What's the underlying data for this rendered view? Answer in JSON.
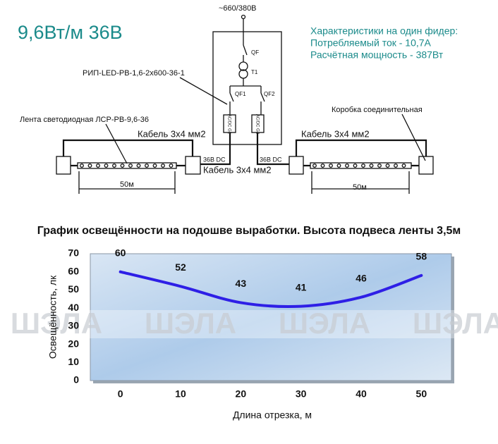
{
  "diagram": {
    "heading": "9,6Вт/м 36В",
    "supply": "~660/380В",
    "specs": [
      "Характеристики на один фидер:",
      "Потребляемый ток - 10,7А",
      "Расчётная мощность - 387Вт"
    ],
    "qf": "QF",
    "t1": "T1",
    "qf1": "QF1",
    "qf2": "QF2",
    "psu1": "AC/DC G1",
    "psu2": "AC/DC G2",
    "rip": "РИП-LED-PB-1,6-2x600-36-1",
    "strip": "Лента светодиодная ЛСР-PB-9,6-36",
    "box": "Коробка соединительная",
    "cables": [
      "Кабель 3х4 мм2",
      "Кабель 3х4 мм2",
      "Кабель 3х4 мм2"
    ],
    "dc": [
      "36В DC",
      "36В DC"
    ],
    "lengths": [
      "50м",
      "50м"
    ],
    "watermark": "ШЭЛА"
  },
  "chart_data": {
    "type": "line",
    "title": "График освещённости на подошве выработки. Высота подвеса ленты 3,5м",
    "x_label": "Длина отрезка, м",
    "y_label": "Освещённость, лк",
    "x": [
      0,
      10,
      20,
      30,
      40,
      50
    ],
    "series": [
      {
        "name": "Освещённость",
        "color": "#2e1fe6",
        "values": [
          60,
          52,
          43,
          41,
          46,
          58
        ]
      }
    ],
    "xlim": [
      -5,
      55
    ],
    "xticks": [
      0,
      10,
      20,
      30,
      40,
      50
    ],
    "ylim": [
      0,
      70
    ],
    "yticks": [
      0,
      10,
      20,
      30,
      40,
      50,
      60,
      70
    ],
    "smooth": true,
    "grid": false
  }
}
